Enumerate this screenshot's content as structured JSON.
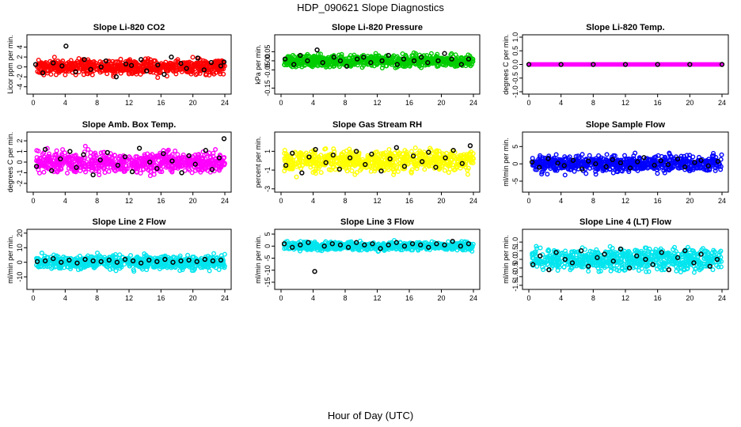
{
  "figure": {
    "title": "HDP_090621  Slope Diagnostics",
    "xlabel": "Hour of Day (UTC)"
  },
  "chart_data": [
    {
      "type": "scatter",
      "title": "Slope Li-820 CO2",
      "ylabel": "Licor ppm per min.",
      "xlim": [
        0,
        24
      ],
      "ylim": [
        -5,
        6
      ],
      "xticks": [
        0,
        4,
        8,
        12,
        16,
        20,
        24
      ],
      "yticks": [
        -4,
        -2,
        0,
        2,
        4
      ],
      "color": "#ff0000",
      "spread": 1.3,
      "series": [
        {
          "x": [
            0.3,
            1.2,
            2.5,
            3.6,
            4.1,
            5.3,
            6.4,
            7.2,
            8.5,
            9.1,
            10.4,
            11.6,
            12.3,
            13.5,
            14.2,
            15.6,
            16.4,
            17.3,
            18.5,
            19.2,
            20.6,
            21.4,
            22.3,
            23.5,
            23.9
          ],
          "y": [
            0.5,
            -1.2,
            0.8,
            0.2,
            4.2,
            -1.0,
            1.5,
            -0.5,
            0.0,
            1.2,
            -2.0,
            0.6,
            0.3,
            1.5,
            -0.8,
            0.4,
            -1.5,
            2.0,
            0.7,
            -0.3,
            1.8,
            -0.6,
            0.9,
            0.2,
            1.0
          ],
          "color": "#000000"
        }
      ]
    },
    {
      "type": "scatter",
      "title": "Slope Li-820 Pressure",
      "ylabel": "kPa per min.",
      "xlim": [
        0,
        24
      ],
      "ylim": [
        -0.17,
        0.13
      ],
      "yticks": [
        -0.15,
        -0.05,
        0.0,
        0.05
      ],
      "yticklabels": [
        "-0.15",
        "-0.05",
        "0.00",
        "0.05"
      ],
      "xticks": [
        0,
        4,
        8,
        12,
        16,
        20,
        24
      ],
      "color": "#00cc00",
      "spread": 0.03,
      "series": [
        {
          "x": [
            0.5,
            1.6,
            2.4,
            3.3,
            4.5,
            5.2,
            6.6,
            7.4,
            8.2,
            9.5,
            10.3,
            11.2,
            12.6,
            13.4,
            14.5,
            15.3,
            16.6,
            17.5,
            18.3,
            19.6,
            20.4,
            21.3,
            22.5,
            23.4
          ],
          "y": [
            0.01,
            -0.02,
            0.03,
            0.0,
            0.06,
            -0.01,
            0.02,
            0.0,
            -0.03,
            0.01,
            0.02,
            -0.01,
            0.0,
            0.03,
            -0.02,
            0.01,
            0.0,
            0.02,
            -0.01,
            0.0,
            0.04,
            0.01,
            -0.02,
            0.01
          ],
          "color": "#000000"
        }
      ]
    },
    {
      "type": "scatter",
      "title": "Slope Li-820 Temp.",
      "ylabel": "degrees C per min.",
      "xlim": [
        0,
        24
      ],
      "ylim": [
        -1.0,
        1.0
      ],
      "xticks": [
        0,
        4,
        8,
        12,
        16,
        20,
        24
      ],
      "yticks": [
        -1.0,
        -0.5,
        0.0,
        0.5,
        1.0
      ],
      "yticklabels": [
        "-1.0",
        "-0.5",
        "0.0",
        "0.5",
        "1.0"
      ],
      "color": "#ff00ff",
      "spread": 0.0,
      "series": [
        {
          "x": [
            0.0,
            4.0,
            8.0,
            12.0,
            16.0,
            20.0,
            24.0
          ],
          "y": [
            0.0,
            0.0,
            0.0,
            0.0,
            0.0,
            0.0,
            0.0
          ],
          "color": "#000000"
        }
      ]
    },
    {
      "type": "scatter",
      "title": "Slope Amb. Box Temp.",
      "ylabel": "degrees C per min.",
      "xlim": [
        0,
        24
      ],
      "ylim": [
        -2.6,
        2.6
      ],
      "xticks": [
        0,
        4,
        8,
        12,
        16,
        20,
        24
      ],
      "yticks": [
        -2,
        -1,
        0,
        1,
        2
      ],
      "color": "#ff00ff",
      "spread": 0.9,
      "series": [
        {
          "x": [
            0.4,
            1.5,
            2.3,
            3.4,
            4.6,
            5.4,
            6.3,
            7.5,
            8.4,
            9.3,
            10.6,
            11.5,
            12.4,
            13.3,
            14.6,
            15.5,
            16.3,
            17.4,
            18.6,
            19.5,
            20.3,
            21.6,
            22.4,
            23.3,
            23.9
          ],
          "y": [
            -0.4,
            1.2,
            -0.8,
            0.3,
            1.0,
            -0.5,
            0.7,
            -1.2,
            0.2,
            0.9,
            -0.3,
            0.5,
            -0.9,
            1.3,
            0.0,
            -0.6,
            0.8,
            0.1,
            -1.0,
            0.6,
            -0.2,
            1.1,
            -0.7,
            0.4,
            2.2
          ],
          "color": "#000000"
        }
      ]
    },
    {
      "type": "scatter",
      "title": "Slope Gas Stream RH",
      "ylabel": "percent per min.",
      "xlim": [
        0,
        24
      ],
      "ylim": [
        -3.1,
        2.8
      ],
      "xticks": [
        0,
        4,
        8,
        12,
        16,
        20,
        24
      ],
      "yticks": [
        -3,
        -1,
        1
      ],
      "color": "#ffff00",
      "spread": 1.0,
      "series": [
        {
          "x": [
            0.6,
            1.4,
            2.6,
            3.5,
            4.3,
            5.6,
            6.5,
            7.3,
            8.6,
            9.4,
            10.5,
            11.3,
            12.5,
            13.6,
            14.4,
            15.4,
            16.5,
            17.6,
            18.4,
            19.3,
            20.5,
            21.5,
            22.6,
            23.6
          ],
          "y": [
            -0.5,
            0.8,
            -1.3,
            0.4,
            1.2,
            -0.2,
            0.6,
            -0.9,
            0.3,
            1.0,
            -0.4,
            0.7,
            -1.1,
            0.2,
            1.4,
            -0.6,
            0.5,
            -0.1,
            0.9,
            -0.7,
            0.3,
            1.1,
            -0.3,
            1.6
          ],
          "color": "#000000"
        }
      ]
    },
    {
      "type": "scatter",
      "title": "Slope Sample Flow",
      "ylabel": "ml/min per min.",
      "xlim": [
        0,
        24
      ],
      "ylim": [
        -7.5,
        8.5
      ],
      "xticks": [
        0,
        4,
        8,
        12,
        16,
        20,
        24
      ],
      "yticks": [
        -5,
        0,
        5
      ],
      "color": "#0000ff",
      "spread": 2.0,
      "series": [
        {
          "x": [
            0.4,
            1.3,
            2.4,
            3.6,
            4.4,
            5.5,
            6.6,
            7.4,
            8.3,
            9.6,
            10.4,
            11.4,
            12.6,
            13.5,
            14.3,
            15.6,
            16.4,
            17.3,
            18.5,
            19.4,
            20.6,
            21.4,
            22.3,
            23.5
          ],
          "y": [
            0.5,
            -1.0,
            1.5,
            0.2,
            -0.5,
            1.0,
            -1.5,
            0.8,
            0.0,
            -0.8,
            1.2,
            0.3,
            -1.2,
            0.6,
            1.8,
            -0.4,
            0.9,
            -0.2,
            1.4,
            -0.9,
            0.4,
            1.0,
            -0.6,
            0.7
          ],
          "color": "#000000"
        }
      ]
    },
    {
      "type": "scatter",
      "title": "Slope Line 2 Flow",
      "ylabel": "ml/min per min.",
      "xlim": [
        0,
        24
      ],
      "ylim": [
        -17,
        21
      ],
      "xticks": [
        0,
        4,
        8,
        12,
        16,
        20,
        24
      ],
      "yticks": [
        -10,
        0,
        10,
        20
      ],
      "color": "#00e5ee",
      "spread": 4.0,
      "series": [
        {
          "x": [
            0.5,
            1.5,
            2.5,
            3.5,
            4.5,
            5.5,
            6.5,
            7.5,
            8.5,
            9.5,
            10.5,
            11.5,
            12.5,
            13.5,
            14.5,
            15.5,
            16.5,
            17.5,
            18.5,
            19.5,
            20.5,
            21.5,
            22.5,
            23.5
          ],
          "y": [
            0.5,
            1.0,
            2.5,
            0.0,
            1.5,
            -0.5,
            2.0,
            1.0,
            0.5,
            1.5,
            0.0,
            2.0,
            1.0,
            -0.5,
            1.5,
            0.5,
            2.0,
            0.0,
            1.0,
            1.5,
            0.5,
            2.0,
            1.0,
            1.5
          ],
          "color": "#000000"
        }
      ]
    },
    {
      "type": "scatter",
      "title": "Slope Line 3 Flow",
      "ylabel": "ml/min per min.",
      "xlim": [
        0,
        24
      ],
      "ylim": [
        -17,
        6
      ],
      "xticks": [
        0,
        4,
        8,
        12,
        16,
        20,
        24
      ],
      "yticks": [
        -15,
        -10,
        -5,
        0,
        5
      ],
      "color": "#00e5ee",
      "spread": 1.5,
      "series": [
        {
          "x": [
            0.4,
            1.4,
            2.4,
            3.4,
            4.2,
            5.4,
            6.4,
            7.4,
            8.4,
            9.4,
            10.4,
            11.4,
            12.4,
            13.4,
            14.4,
            15.4,
            16.4,
            17.4,
            18.4,
            19.4,
            20.4,
            21.4,
            22.4,
            23.4
          ],
          "y": [
            1.0,
            -0.5,
            0.5,
            1.5,
            -10.5,
            0.0,
            1.0,
            0.5,
            -0.5,
            1.5,
            0.5,
            1.0,
            -1.0,
            0.5,
            1.5,
            0.0,
            1.0,
            0.5,
            -0.5,
            1.0,
            0.5,
            2.0,
            0.0,
            1.0
          ],
          "color": "#000000"
        }
      ]
    },
    {
      "type": "scatter",
      "title": "Slope Line 4 (LT) Flow",
      "ylabel": "ml/min per min.",
      "xlim": [
        0,
        24
      ],
      "ylim": [
        -1.6,
        1.6
      ],
      "xticks": [
        0,
        4,
        8,
        12,
        16,
        20,
        24
      ],
      "yticks": [
        -1.5,
        -1.0,
        -0.5,
        0.0,
        0.5,
        1.0
      ],
      "yticklabels": [
        "-1.5",
        "-1.0",
        "-0.5",
        "0.0",
        "0.5",
        "1.0"
      ],
      "color": "#00e5ee",
      "spread": 0.55,
      "series": [
        {
          "x": [
            0.5,
            1.4,
            2.5,
            3.4,
            4.5,
            5.4,
            6.5,
            7.4,
            8.5,
            9.4,
            10.5,
            11.4,
            12.5,
            13.4,
            14.5,
            15.4,
            16.5,
            17.4,
            18.5,
            19.4,
            20.5,
            21.4,
            22.5,
            23.4
          ],
          "y": [
            -0.3,
            0.2,
            -0.6,
            0.4,
            0.0,
            -0.2,
            0.5,
            -0.4,
            0.1,
            0.3,
            -0.1,
            0.6,
            -0.5,
            0.2,
            0.0,
            -0.3,
            0.4,
            -0.6,
            0.1,
            0.5,
            -0.2,
            0.3,
            -0.4,
            0.0
          ],
          "color": "#000000"
        }
      ]
    }
  ]
}
